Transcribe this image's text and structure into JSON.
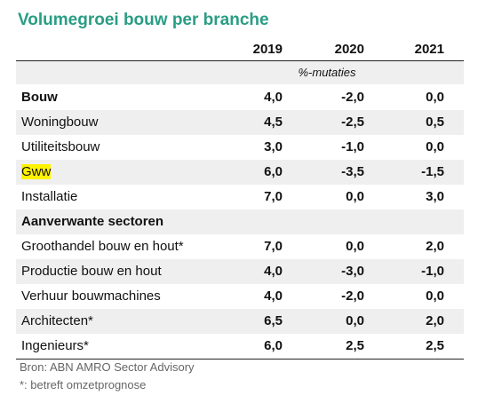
{
  "title": "Volumegroei bouw per branche",
  "table": {
    "header": [
      "2019",
      "2020",
      "2021"
    ],
    "unit": "%-mutaties",
    "rows": [
      {
        "label": "Bouw",
        "values": [
          "4,0",
          "-2,0",
          "0,0"
        ],
        "bold": true
      },
      {
        "label": "Woningbouw",
        "values": [
          "4,5",
          "-2,5",
          "0,5"
        ]
      },
      {
        "label": "Utiliteitsbouw",
        "values": [
          "3,0",
          "-1,0",
          "0,0"
        ]
      },
      {
        "label": "Gww",
        "values": [
          "6,0",
          "-3,5",
          "-1,5"
        ],
        "highlight": true
      },
      {
        "label": "Installatie",
        "values": [
          "7,0",
          "0,0",
          "3,0"
        ]
      },
      {
        "label": "Aanverwante sectoren",
        "values": [],
        "bold": true
      },
      {
        "label": "Groothandel bouw en hout*",
        "values": [
          "7,0",
          "0,0",
          "2,0"
        ]
      },
      {
        "label": "Productie bouw en hout",
        "values": [
          "4,0",
          "-3,0",
          "-1,0"
        ]
      },
      {
        "label": "Verhuur bouwmachines",
        "values": [
          "4,0",
          "-2,0",
          "0,0"
        ]
      },
      {
        "label": "Architecten*",
        "values": [
          "6,5",
          "0,0",
          "2,0"
        ]
      },
      {
        "label": "Ingenieurs*",
        "values": [
          "6,0",
          "2,5",
          "2,5"
        ]
      }
    ]
  },
  "footer": {
    "source": "Bron: ABN AMRO Sector Advisory",
    "note": "*: betreft omzetprognose"
  }
}
